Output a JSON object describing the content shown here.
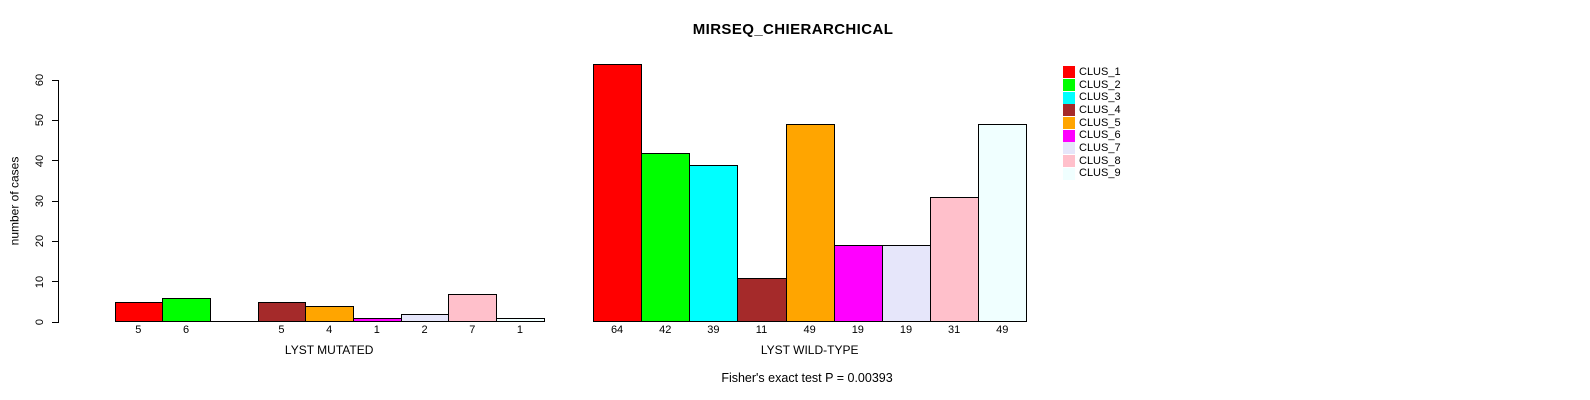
{
  "chart_data": {
    "type": "bar",
    "title": "MIRSEQ_CHIERARCHICAL",
    "ylabel": "number of cases",
    "ylim": [
      0,
      60
    ],
    "yticks": [
      0,
      10,
      20,
      30,
      40,
      50,
      60
    ],
    "grid": false,
    "legend_position": "right-outside",
    "legend": [
      "CLUS_1",
      "CLUS_2",
      "CLUS_3",
      "CLUS_4",
      "CLUS_5",
      "CLUS_6",
      "CLUS_7",
      "CLUS_8",
      "CLUS_9"
    ],
    "colors": [
      "#ff0000",
      "#00ff00",
      "#00ffff",
      "#a52a2a",
      "#ffa500",
      "#ff00ff",
      "#e6e6fa",
      "#ffc0cb",
      "#f0ffff"
    ],
    "groups": [
      {
        "label": "LYST MUTATED",
        "values": [
          5,
          6,
          0,
          5,
          4,
          1,
          2,
          7,
          1
        ]
      },
      {
        "label": "LYST WILD-TYPE",
        "values": [
          64,
          42,
          39,
          11,
          49,
          19,
          19,
          31,
          49
        ]
      }
    ],
    "bar_value_labels": [
      [
        "5",
        "6",
        "",
        "5",
        "4",
        "1",
        "2",
        "7",
        "1"
      ],
      [
        "64",
        "42",
        "39",
        "11",
        "49",
        "19",
        "19",
        "31",
        "49"
      ]
    ],
    "footnote": "Fisher's exact test P = 0.00393"
  }
}
